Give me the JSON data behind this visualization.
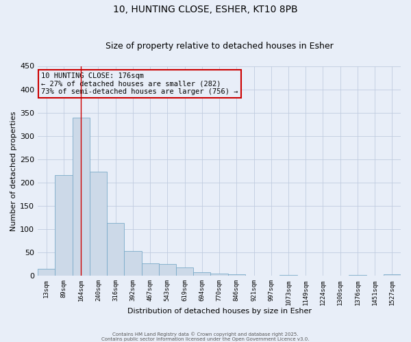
{
  "title1": "10, HUNTING CLOSE, ESHER, KT10 8PB",
  "title2": "Size of property relative to detached houses in Esher",
  "xlabel": "Distribution of detached houses by size in Esher",
  "ylabel": "Number of detached properties",
  "categories": [
    "13sqm",
    "89sqm",
    "164sqm",
    "240sqm",
    "316sqm",
    "392sqm",
    "467sqm",
    "543sqm",
    "619sqm",
    "694sqm",
    "770sqm",
    "846sqm",
    "921sqm",
    "997sqm",
    "1073sqm",
    "1149sqm",
    "1224sqm",
    "1300sqm",
    "1376sqm",
    "1451sqm",
    "1527sqm"
  ],
  "values": [
    15,
    216,
    340,
    223,
    113,
    54,
    27,
    25,
    18,
    8,
    5,
    4,
    0,
    0,
    2,
    1,
    1,
    0,
    2,
    0,
    3
  ],
  "bar_color": "#ccd9e8",
  "bar_edgecolor": "#7aaac8",
  "vline_x": 2,
  "vline_color": "#cc0000",
  "annotation_text": "10 HUNTING CLOSE: 176sqm\n← 27% of detached houses are smaller (282)\n73% of semi-detached houses are larger (756) →",
  "annotation_box_color": "#cc0000",
  "ylim": [
    0,
    450
  ],
  "yticks": [
    0,
    50,
    100,
    150,
    200,
    250,
    300,
    350,
    400,
    450
  ],
  "grid_color": "#c0cce0",
  "background_color": "#e8eef8",
  "footer1": "Contains HM Land Registry data © Crown copyright and database right 2025.",
  "footer2": "Contains public sector information licensed under the Open Government Licence v3.0.",
  "title_fontsize": 10,
  "subtitle_fontsize": 9
}
